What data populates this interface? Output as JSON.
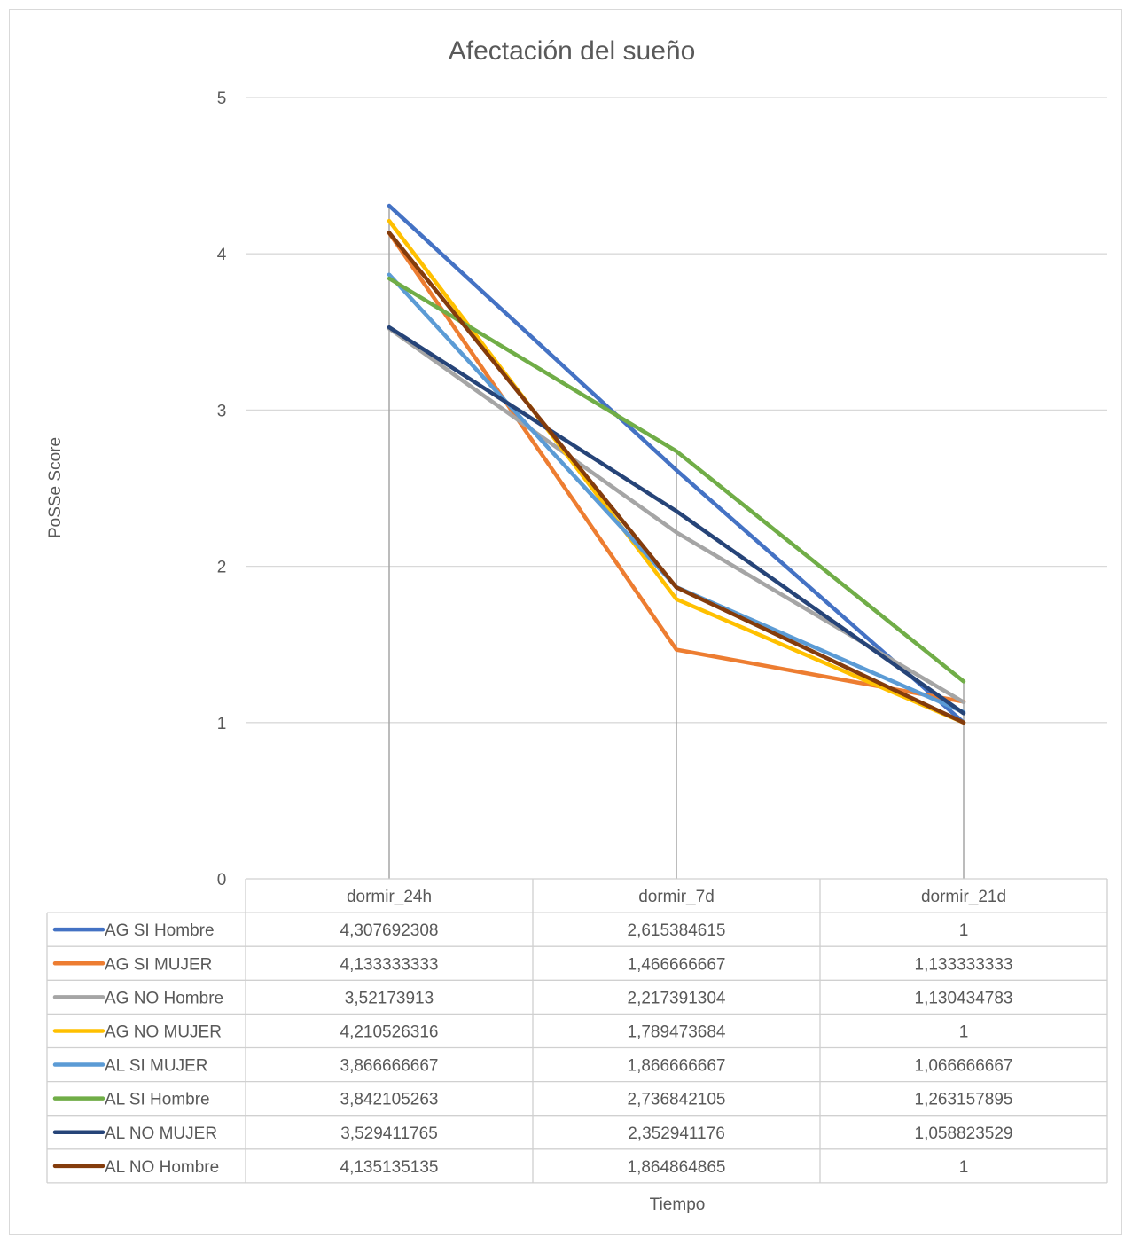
{
  "chart_data": {
    "type": "line",
    "title": "Afectación del sueño",
    "xlabel": "Tiempo",
    "ylabel": "PoSSe Score",
    "ylim": [
      0,
      5
    ],
    "yticks": [
      "0",
      "1",
      "2",
      "3",
      "4",
      "5"
    ],
    "grid": true,
    "legend": "data-table",
    "categories": [
      "dormir_24h",
      "dormir_7d",
      "dormir_21d"
    ],
    "series": [
      {
        "name": "AG SI Hombre",
        "color": "#4472c4",
        "values": [
          4.307692308,
          2.615384615,
          1
        ],
        "labels": [
          "4,307692308",
          "2,615384615",
          "1"
        ]
      },
      {
        "name": "AG SI MUJER",
        "color": "#ed7d31",
        "values": [
          4.133333333,
          1.466666667,
          1.133333333
        ],
        "labels": [
          "4,133333333",
          "1,466666667",
          "1,133333333"
        ]
      },
      {
        "name": "AG NO Hombre",
        "color": "#a5a5a5",
        "values": [
          3.52173913,
          2.217391304,
          1.130434783
        ],
        "labels": [
          "3,52173913",
          "2,217391304",
          "1,130434783"
        ]
      },
      {
        "name": "AG NO MUJER",
        "color": "#ffc000",
        "values": [
          4.210526316,
          1.789473684,
          1
        ],
        "labels": [
          "4,210526316",
          "1,789473684",
          "1"
        ]
      },
      {
        "name": "AL SI MUJER",
        "color": "#5b9bd5",
        "values": [
          3.866666667,
          1.866666667,
          1.066666667
        ],
        "labels": [
          "3,866666667",
          "1,866666667",
          "1,066666667"
        ]
      },
      {
        "name": "AL SI Hombre",
        "color": "#70ad47",
        "values": [
          3.842105263,
          2.736842105,
          1.263157895
        ],
        "labels": [
          "3,842105263",
          "2,736842105",
          "1,263157895"
        ]
      },
      {
        "name": "AL NO MUJER",
        "color": "#264478",
        "values": [
          3.529411765,
          2.352941176,
          1.058823529
        ],
        "labels": [
          "3,529411765",
          "2,352941176",
          "1,058823529"
        ]
      },
      {
        "name": "AL NO Hombre",
        "color": "#843c0c",
        "values": [
          4.135135135,
          1.864864865,
          1
        ],
        "labels": [
          "4,135135135",
          "1,864864865",
          "1"
        ]
      }
    ]
  }
}
